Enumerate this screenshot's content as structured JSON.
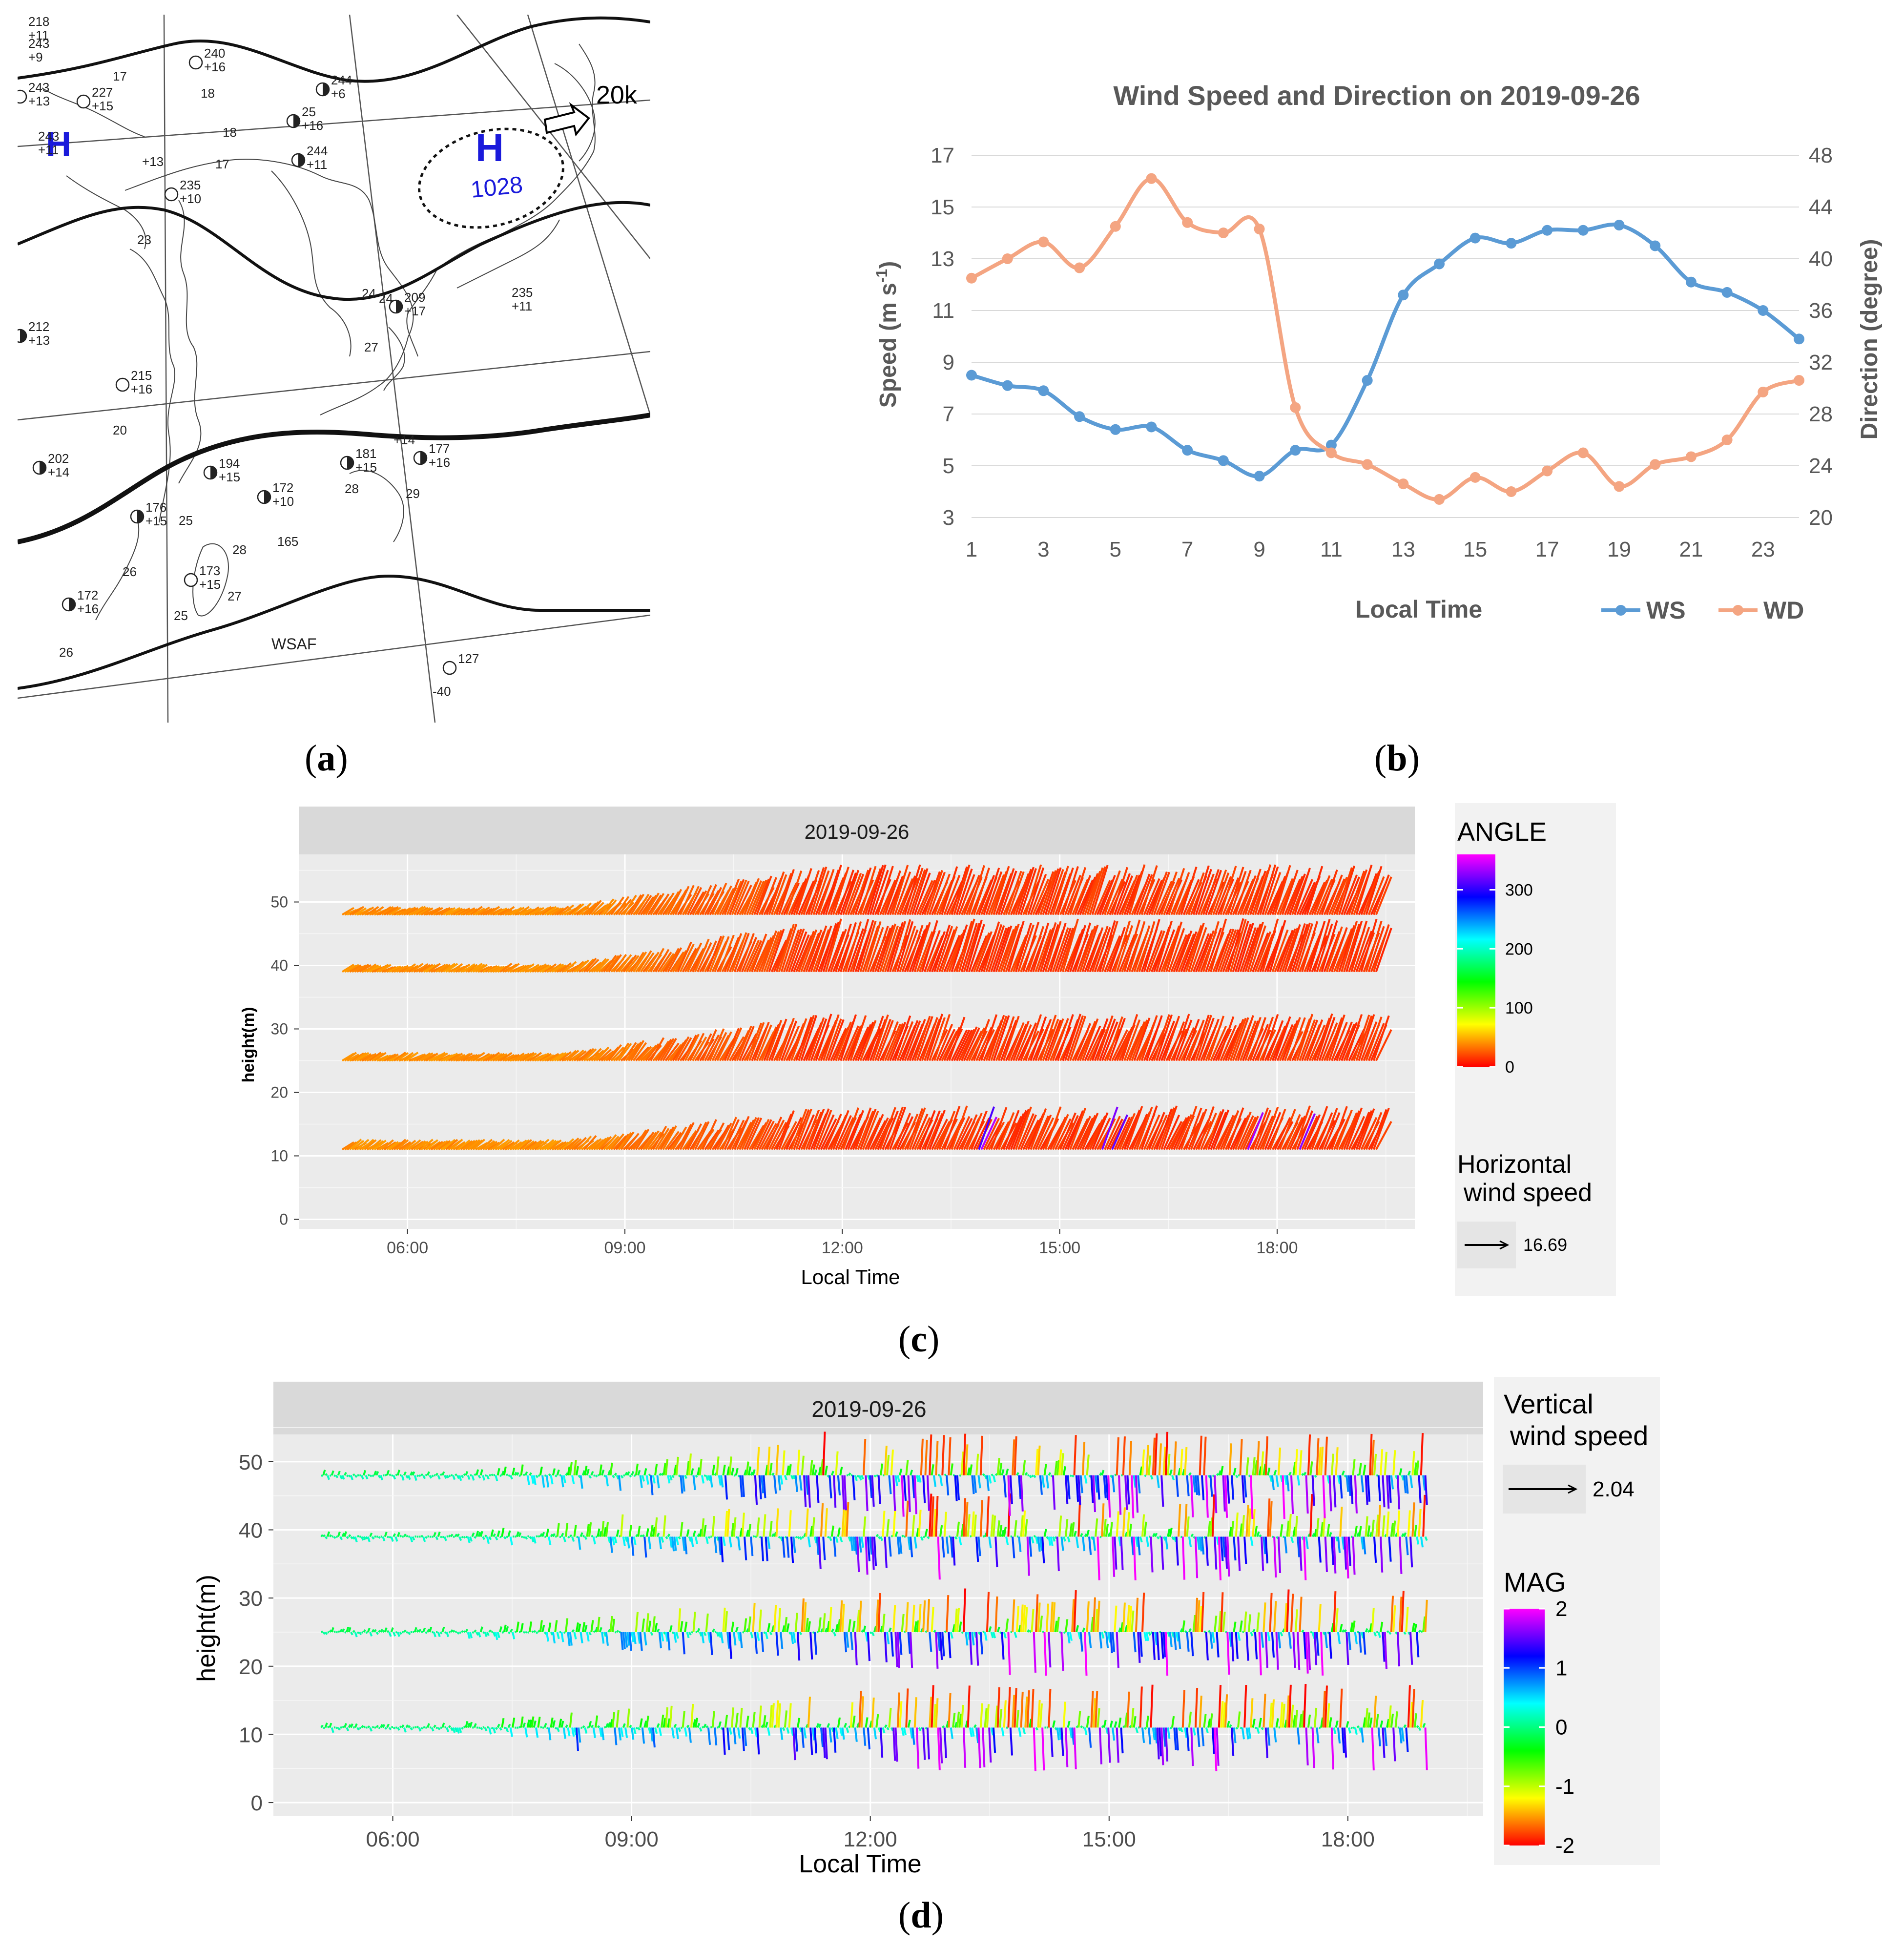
{
  "panels": {
    "a": {
      "paren_open": "(",
      "letter": "a",
      "paren_close": ")"
    },
    "b": {
      "paren_open": "(",
      "letter": "b",
      "paren_close": ")"
    },
    "c": {
      "paren_open": "(",
      "letter": "c",
      "paren_close": ")"
    },
    "d": {
      "paren_open": "(",
      "letter": "d",
      "paren_close": ")"
    }
  },
  "weather_map": {
    "high_left": "H",
    "high_main": "H",
    "pressure": "1028",
    "speed_note": "20k",
    "stations": [
      {
        "top": "218",
        "bottom": "+11"
      },
      {
        "top": "243",
        "bottom": "+9"
      },
      {
        "top": "243",
        "bottom": "+13"
      },
      {
        "top": "240",
        "bottom": "+16"
      },
      {
        "top": "227",
        "bottom": "+15"
      },
      {
        "top": "244",
        "bottom": "+6"
      },
      {
        "top": "25",
        "bottom": "+16"
      },
      {
        "top": "244",
        "bottom": "+11"
      },
      {
        "top": "243",
        "bottom": "+11"
      },
      {
        "top": "235",
        "bottom": "+10"
      },
      {
        "top": "212",
        "bottom": "+13"
      },
      {
        "top": "215",
        "bottom": "+16"
      },
      {
        "top": "202",
        "bottom": "+14"
      },
      {
        "top": "194",
        "bottom": "+15"
      },
      {
        "top": "172",
        "bottom": "+10"
      },
      {
        "top": "176",
        "bottom": "+15"
      },
      {
        "top": "173",
        "bottom": "+15"
      },
      {
        "top": "172",
        "bottom": "+16"
      },
      {
        "top": "181",
        "bottom": "+15"
      },
      {
        "top": "177",
        "bottom": "+16"
      },
      {
        "top": "209",
        "bottom": "+17"
      },
      {
        "top": "235",
        "bottom": "+11"
      },
      {
        "top": "165",
        "bottom": ""
      },
      {
        "top": "127",
        "bottom": ""
      }
    ],
    "small_numbers": [
      "17",
      "18",
      "20",
      "23",
      "18",
      "17",
      "24",
      "27",
      "28",
      "29",
      "25",
      "28",
      "26",
      "27",
      "26",
      "25",
      "24",
      "-40",
      "+14",
      "+13"
    ],
    "text_wsaf": "WSAF"
  },
  "chart_data": [
    {
      "id": "b",
      "type": "line",
      "title": "Wind Speed and Direction on 2019-09-26",
      "xlabel": "Local Time",
      "ylabel": "Speed (m s",
      "ylabel_sup": "-1",
      "ylabel_close": ")",
      "y2label": "Direction (degree)",
      "x": [
        1,
        2,
        3,
        4,
        5,
        6,
        7,
        8,
        9,
        10,
        11,
        12,
        13,
        14,
        15,
        16,
        17,
        18,
        19,
        20,
        21,
        22,
        23,
        24
      ],
      "xticks": [
        "1",
        "3",
        "5",
        "7",
        "9",
        "11",
        "13",
        "15",
        "17",
        "19",
        "21",
        "23"
      ],
      "xtick_values": [
        1,
        3,
        5,
        7,
        9,
        11,
        13,
        15,
        17,
        19,
        21,
        23
      ],
      "ylim": [
        3,
        17
      ],
      "yticks": [
        "3",
        "5",
        "7",
        "9",
        "11",
        "13",
        "15",
        "17"
      ],
      "y2lim": [
        20,
        48
      ],
      "y2ticks": [
        "20",
        "24",
        "28",
        "32",
        "36",
        "40",
        "44",
        "48"
      ],
      "series": [
        {
          "name": "WS",
          "axis": "left",
          "color": "#5b9bd5",
          "values": [
            8.5,
            8.1,
            7.9,
            6.9,
            6.4,
            6.5,
            5.6,
            5.2,
            4.6,
            5.6,
            5.8,
            8.3,
            11.6,
            12.8,
            13.8,
            13.6,
            14.1,
            14.1,
            14.3,
            13.5,
            12.1,
            11.7,
            11.0,
            9.9
          ]
        },
        {
          "name": "WD",
          "axis": "right",
          "color": "#f4a582",
          "values": [
            38.5,
            40.0,
            41.3,
            39.3,
            42.5,
            46.2,
            42.8,
            42.0,
            42.3,
            28.5,
            25.0,
            24.1,
            22.6,
            21.4,
            23.1,
            22.0,
            23.6,
            25.0,
            22.4,
            24.1,
            24.7,
            26.0,
            29.7,
            30.6
          ]
        }
      ]
    },
    {
      "id": "c",
      "type": "vector-field",
      "strip_title": "2019-09-26",
      "xlabel": "Local Time",
      "ylabel": "height(m)",
      "xticks": [
        "06:00",
        "09:00",
        "12:00",
        "15:00",
        "18:00"
      ],
      "xtick_values": [
        6,
        9,
        12,
        15,
        18
      ],
      "xlim": [
        4.5,
        19.9
      ],
      "yticks": [
        "0",
        "10",
        "20",
        "30",
        "40",
        "50"
      ],
      "ylim": [
        -1.5,
        57.5
      ],
      "time_range": [
        5.1,
        19.4
      ],
      "heights": [
        11,
        25,
        39,
        48
      ],
      "vector_top": {
        "11": {
          "start": 1.3,
          "rise": 6.5,
          "end": 5.5
        },
        "25": {
          "start": 1.0,
          "rise": 5.5,
          "end": 6.0
        },
        "39": {
          "start": 1.0,
          "rise": 4.5,
          "end": 7.0
        },
        "48": {
          "start": 1.0,
          "rise": 4.0,
          "end": 6.5
        }
      },
      "legend_color_title": "ANGLE",
      "legend_color_ticks": [
        "300",
        "200",
        "100",
        "0"
      ],
      "legend_color_values": [
        300,
        200,
        100,
        0
      ],
      "legend_color_range": [
        0,
        360
      ],
      "legend_arrow_title_1": "Horizontal",
      "legend_arrow_title_2": "wind speed",
      "legend_arrow_value": "16.69"
    },
    {
      "id": "d",
      "type": "vector-field",
      "strip_title": "2019-09-26",
      "xlabel": "Local Time",
      "ylabel": "height(m)",
      "xticks": [
        "06:00",
        "09:00",
        "12:00",
        "15:00",
        "18:00"
      ],
      "xtick_values": [
        6,
        9,
        12,
        15,
        18
      ],
      "xlim": [
        4.5,
        19.7
      ],
      "yticks": [
        "0",
        "10",
        "20",
        "30",
        "40",
        "50"
      ],
      "ylim": [
        -2,
        54
      ],
      "time_range": [
        5.1,
        19.0
      ],
      "heights": [
        11,
        25,
        39,
        48
      ],
      "legend_arrow_title_1": "Vertical",
      "legend_arrow_title_2": "wind speed",
      "legend_arrow_value": "2.04",
      "legend_color_title": "MAG",
      "legend_color_ticks": [
        "2",
        "1",
        "0",
        "-1",
        "-2"
      ],
      "legend_color_values": [
        2,
        1,
        0,
        -1,
        -2
      ],
      "legend_color_range": [
        -2,
        2
      ]
    }
  ]
}
